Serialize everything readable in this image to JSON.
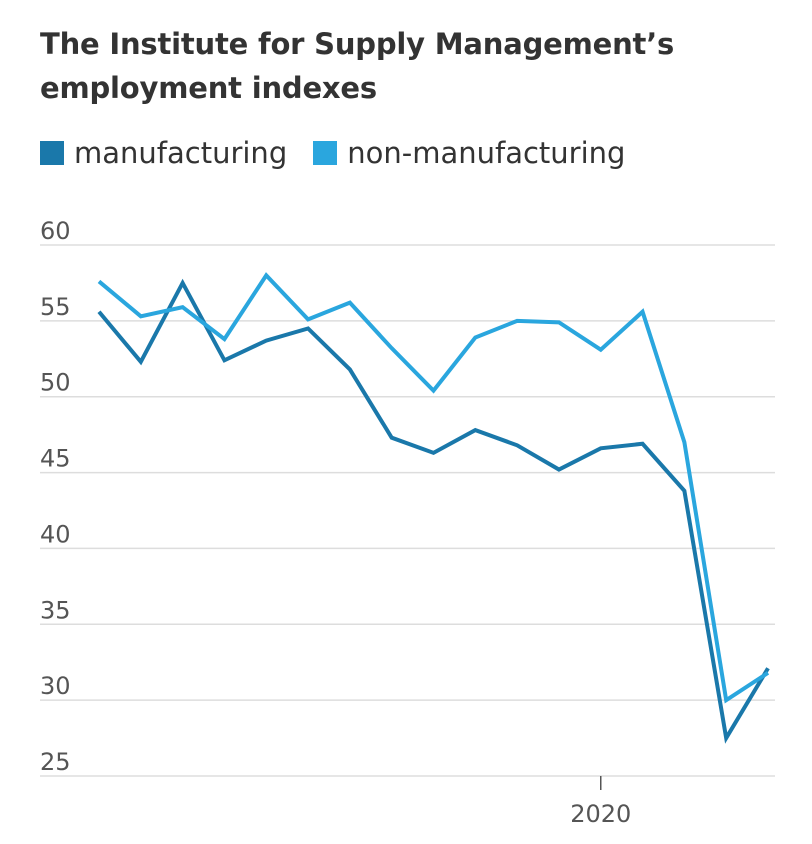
{
  "chart_data": {
    "type": "line",
    "title": "The Institute for Supply Management’s employment indexes",
    "xlabel": "",
    "ylabel": "",
    "ylim": [
      25,
      60
    ],
    "yticks": [
      60,
      55,
      50,
      45,
      40,
      35,
      30,
      25
    ],
    "x_tick_labels": [
      {
        "index": 12,
        "label": "2020"
      }
    ],
    "grid": true,
    "legend_position": "top-left",
    "x": [
      0,
      1,
      2,
      3,
      4,
      5,
      6,
      7,
      8,
      9,
      10,
      11,
      12,
      13,
      14,
      15,
      16
    ],
    "series": [
      {
        "name": "manufacturing",
        "color": "#1a78aa",
        "values": [
          55.6,
          52.3,
          57.5,
          52.4,
          53.7,
          54.5,
          51.8,
          47.3,
          46.3,
          47.8,
          46.8,
          45.2,
          46.6,
          46.9,
          43.8,
          27.5,
          32.1
        ]
      },
      {
        "name": "non-manufacturing",
        "color": "#2aa6de",
        "values": [
          57.6,
          55.3,
          55.9,
          53.8,
          58.0,
          55.1,
          56.2,
          53.2,
          50.4,
          53.9,
          55.0,
          54.9,
          53.1,
          55.6,
          47.0,
          30.0,
          31.8
        ]
      }
    ]
  }
}
